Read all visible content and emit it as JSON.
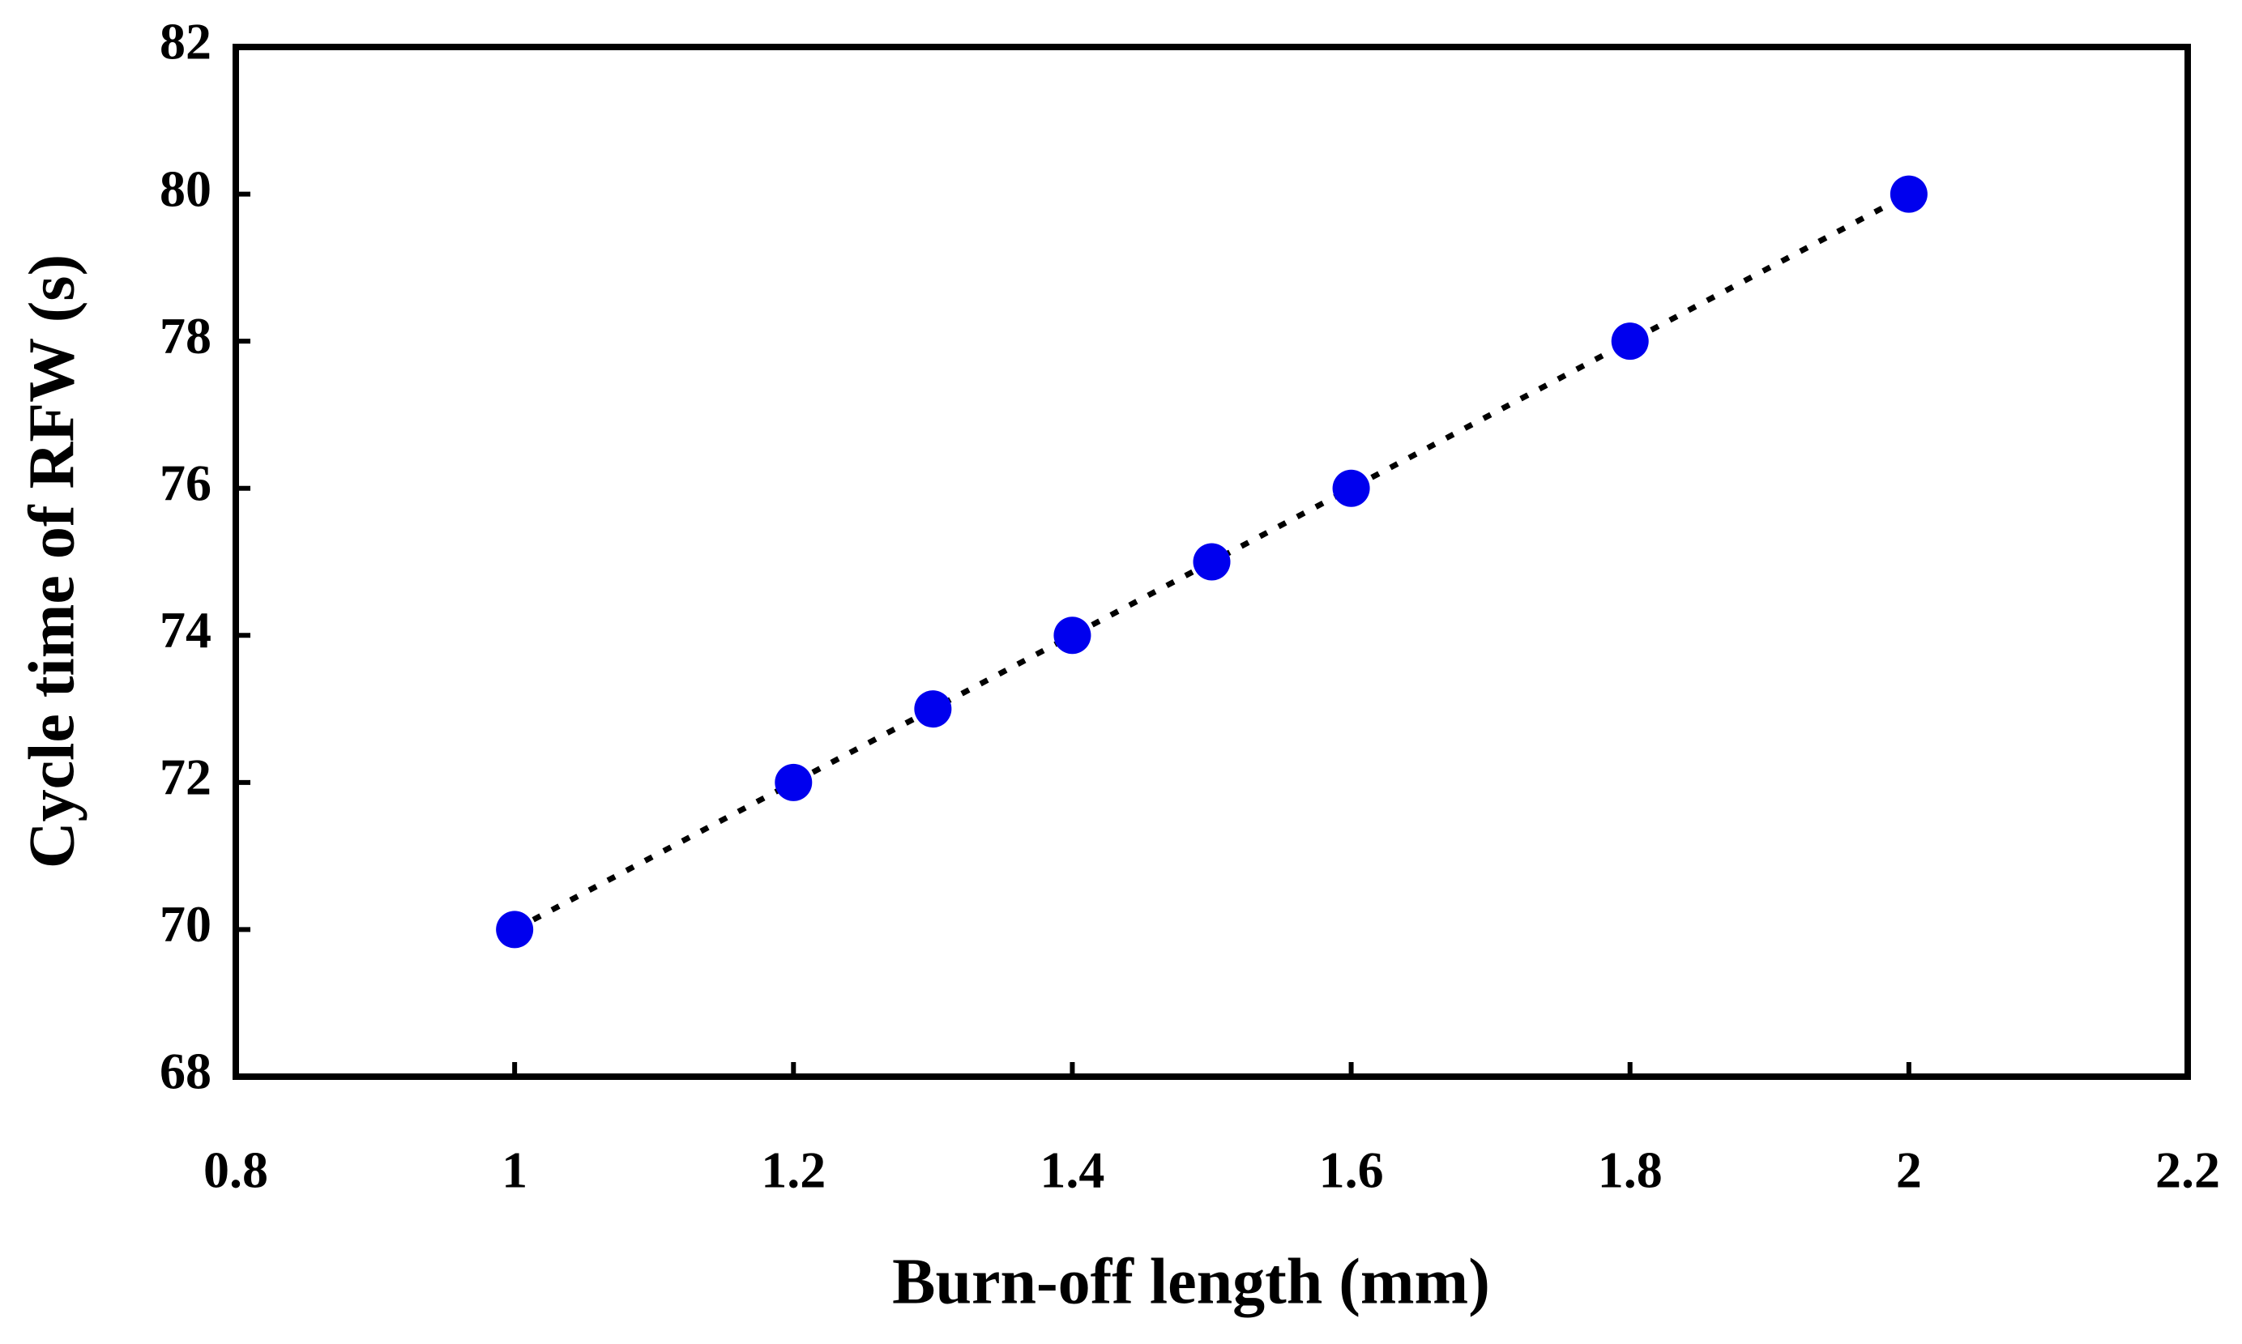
{
  "chart_data": {
    "type": "scatter",
    "x_label": "Burn-off length (mm)",
    "y_label": "Cycle time of RFW (s)",
    "series": [
      {
        "name": "Cycle time",
        "color": "#0000ee",
        "x": [
          1,
          1.2,
          1.3,
          1.4,
          1.5,
          1.6,
          1.8,
          2
        ],
        "values": [
          70,
          72,
          73,
          74,
          75,
          76,
          78,
          80
        ]
      }
    ],
    "trendline": "dotted",
    "xlim": [
      0.8,
      2.2
    ],
    "xticks": [
      0.8,
      1,
      1.2,
      1.4,
      1.6,
      1.8,
      2,
      2.2
    ],
    "ylim": [
      68,
      82
    ],
    "yticks": [
      68,
      70,
      72,
      74,
      76,
      78,
      80,
      82
    ],
    "grid": false
  }
}
